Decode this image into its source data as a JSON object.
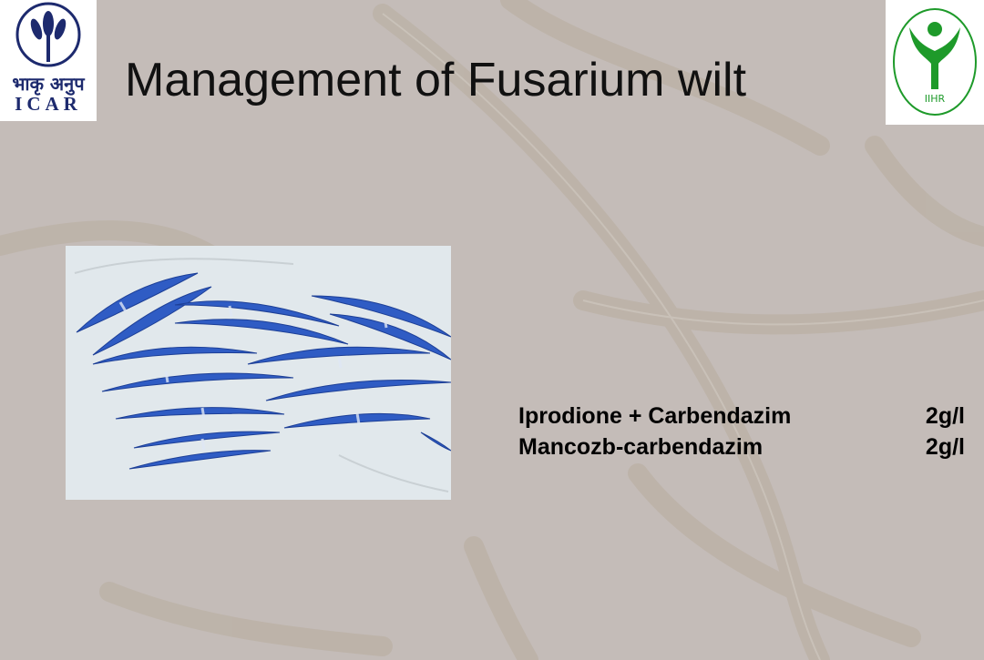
{
  "slide": {
    "title": "Management of Fusarium wilt",
    "logo_left": {
      "hindi": "भाकृ अनुप",
      "acronym": "ICAR"
    },
    "logo_right": {
      "acronym": "IIHR"
    }
  },
  "treatments": [
    {
      "chemical": "Iprodione + Carbendazim",
      "dose": "2g/l"
    },
    {
      "chemical": "Mancozb-carbendazim",
      "dose": "2g/l"
    }
  ],
  "colors": {
    "background": "#c4bcb8",
    "title": "#111111",
    "conidia_blue": "#2f5cc4",
    "icar_blue": "#1d2a6e",
    "iihr_green": "#1e9a2a"
  }
}
